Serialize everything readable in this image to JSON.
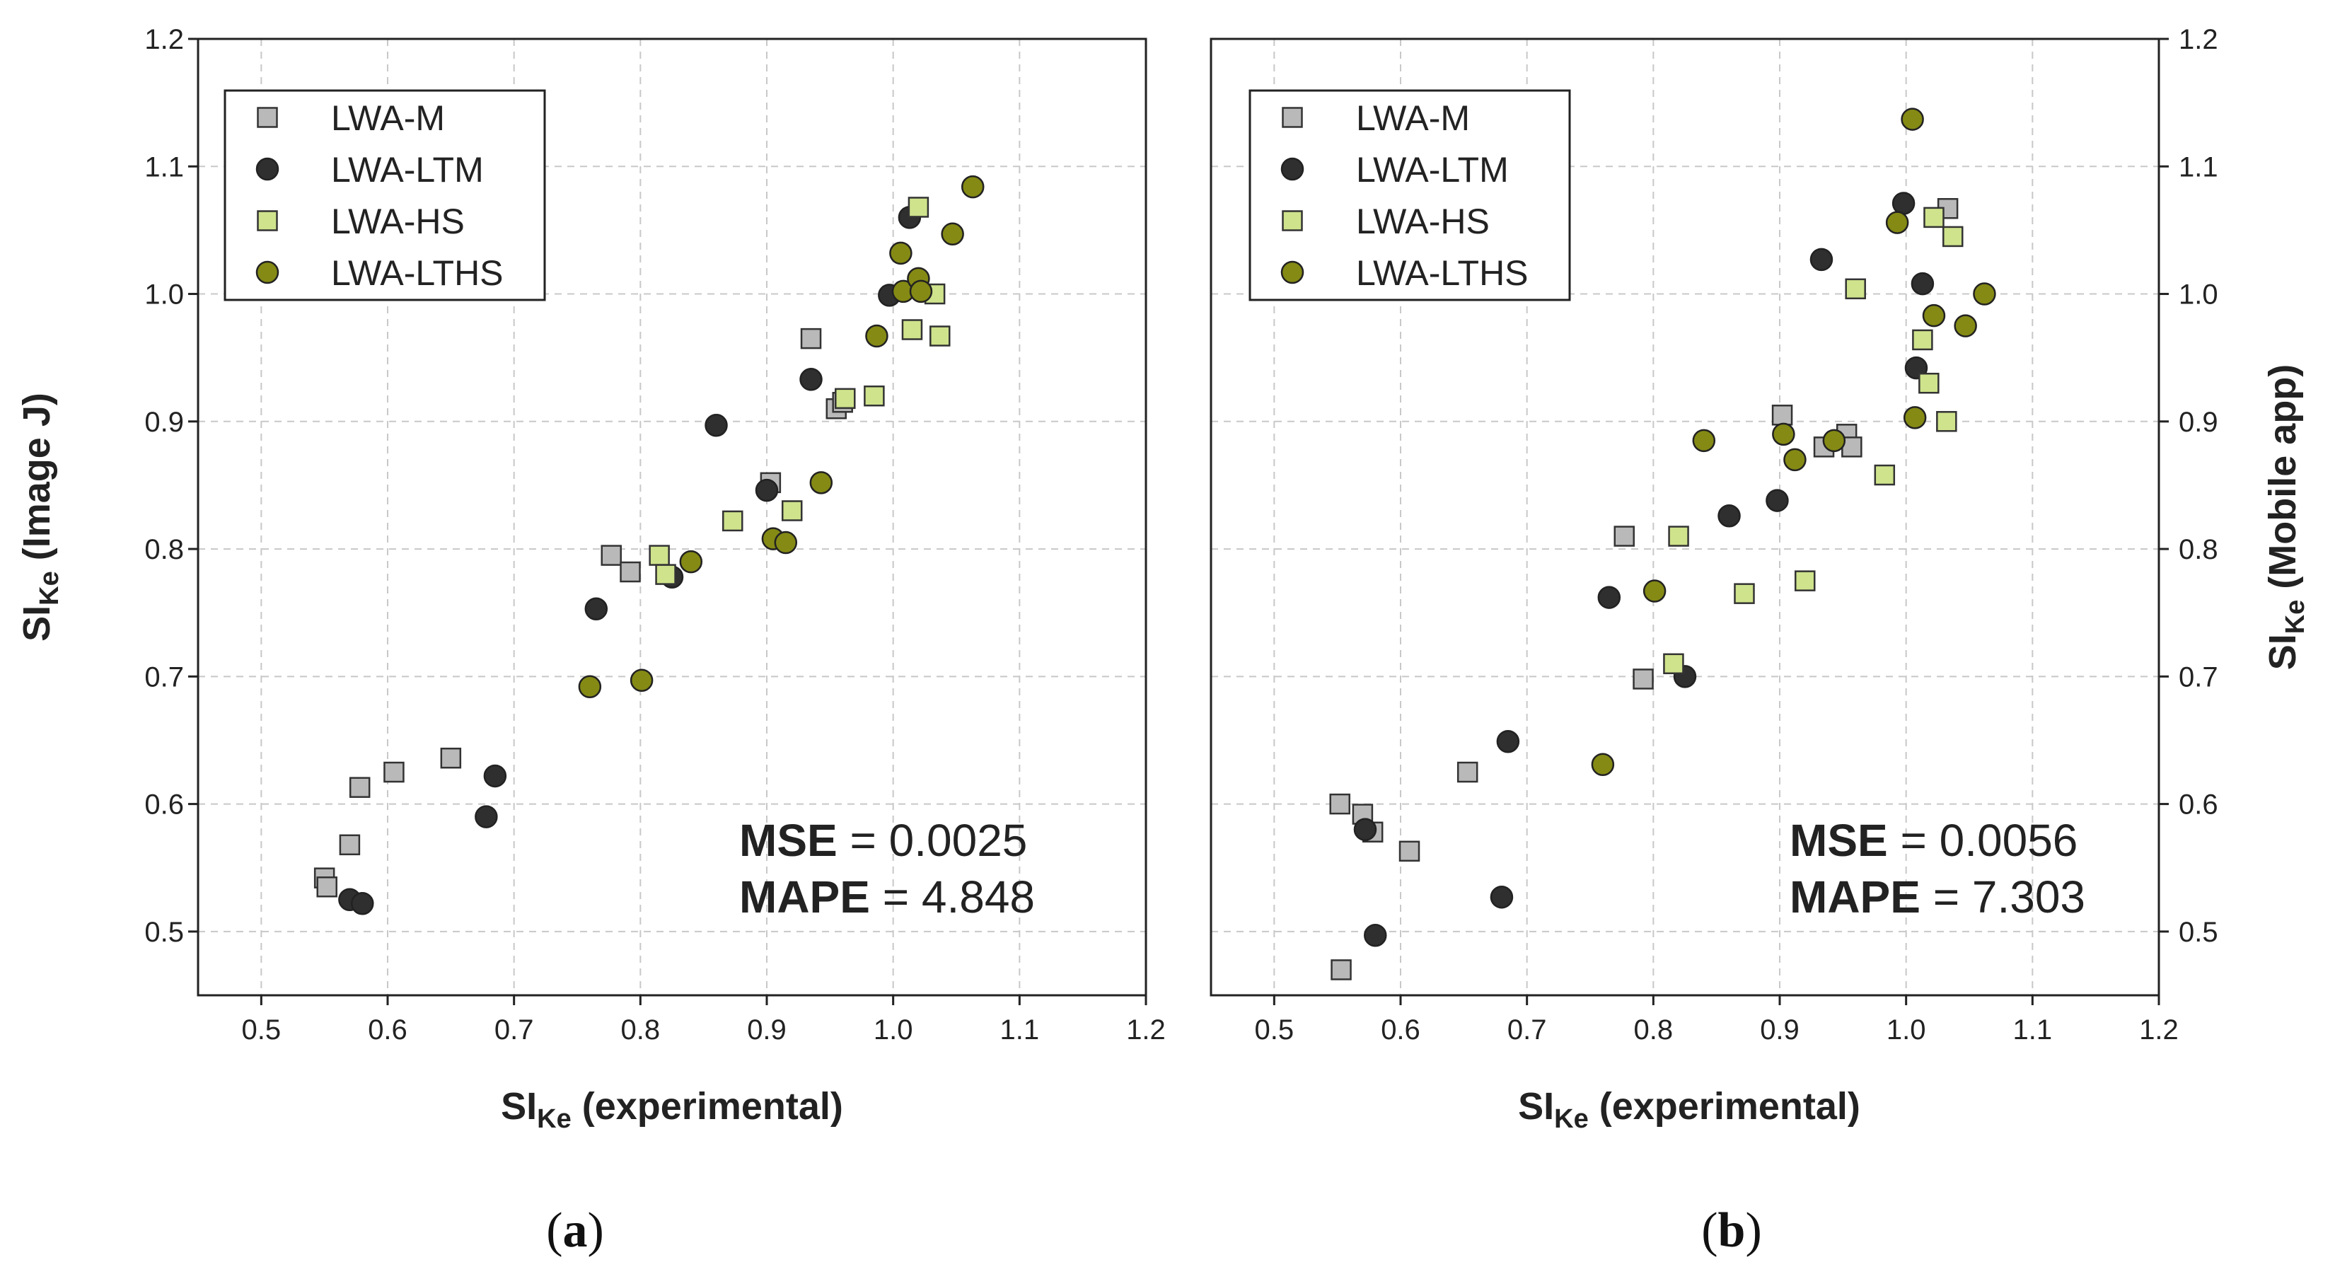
{
  "colors": {
    "LWA-M": "#b9b9b9",
    "LWA-LTM": "#2f2f2f",
    "LWA-HS": "#cfe38c",
    "LWA-LTHS": "#858a14",
    "grid": "#c8c8c8"
  },
  "chart_data": [
    {
      "type": "scatter",
      "panel": "a",
      "panel_label": {
        "open": "(",
        "letter": "a",
        "close": ")"
      },
      "xlabel": {
        "main": "SI",
        "sub": "Ke",
        "rest": " (experimental)"
      },
      "ylabel": {
        "main": "SI",
        "sub": "Ke",
        "rest": " (Image J)"
      },
      "xlim": [
        0.45,
        1.2
      ],
      "ylim": [
        0.45,
        1.2
      ],
      "xticks": [
        "0.5",
        "0.6",
        "0.7",
        "0.8",
        "0.9",
        "1.0",
        "1.1",
        "1.2"
      ],
      "yticks": [
        "0.5",
        "0.6",
        "0.7",
        "0.8",
        "0.9",
        "1.0",
        "1.1",
        "1.2"
      ],
      "y_axis_side": "left",
      "legend": {
        "position": "top-left",
        "entries": [
          "LWA-M",
          "LWA-LTM",
          "LWA-HS",
          "LWA-LTHS"
        ]
      },
      "annotations": [
        {
          "label": "MSE",
          "value": " = 0.0025"
        },
        {
          "label": "MAPE",
          "value": " = 4.848"
        }
      ],
      "series": [
        {
          "name": "LWA-M",
          "marker": "square",
          "points": [
            [
              0.55,
              0.542
            ],
            [
              0.552,
              0.535
            ],
            [
              0.57,
              0.568
            ],
            [
              0.578,
              0.613
            ],
            [
              0.605,
              0.625
            ],
            [
              0.65,
              0.636
            ],
            [
              0.777,
              0.795
            ],
            [
              0.792,
              0.782
            ],
            [
              0.903,
              0.852
            ],
            [
              0.935,
              0.965
            ],
            [
              0.955,
              0.91
            ],
            [
              0.96,
              0.915
            ],
            [
              1.02,
              1.005
            ]
          ]
        },
        {
          "name": "LWA-LTM",
          "marker": "circle",
          "points": [
            [
              0.57,
              0.525
            ],
            [
              0.58,
              0.522
            ],
            [
              0.678,
              0.59
            ],
            [
              0.685,
              0.622
            ],
            [
              0.765,
              0.753
            ],
            [
              0.825,
              0.778
            ],
            [
              0.86,
              0.897
            ],
            [
              0.9,
              0.846
            ],
            [
              0.935,
              0.933
            ],
            [
              0.997,
              0.999
            ],
            [
              1.013,
              1.06
            ]
          ]
        },
        {
          "name": "LWA-HS",
          "marker": "square",
          "points": [
            [
              0.815,
              0.795
            ],
            [
              0.82,
              0.78
            ],
            [
              0.873,
              0.822
            ],
            [
              0.92,
              0.83
            ],
            [
              0.962,
              0.918
            ],
            [
              0.985,
              0.92
            ],
            [
              1.015,
              0.972
            ],
            [
              1.02,
              1.068
            ],
            [
              1.033,
              1.0
            ],
            [
              1.037,
              0.967
            ]
          ]
        },
        {
          "name": "LWA-LTHS",
          "marker": "circle",
          "points": [
            [
              0.76,
              0.692
            ],
            [
              0.801,
              0.697
            ],
            [
              0.84,
              0.79
            ],
            [
              0.905,
              0.808
            ],
            [
              0.915,
              0.805
            ],
            [
              0.943,
              0.852
            ],
            [
              0.987,
              0.967
            ],
            [
              1.006,
              1.032
            ],
            [
              1.008,
              1.002
            ],
            [
              1.02,
              1.012
            ],
            [
              1.022,
              1.002
            ],
            [
              1.047,
              1.047
            ],
            [
              1.063,
              1.084
            ]
          ]
        }
      ]
    },
    {
      "type": "scatter",
      "panel": "b",
      "panel_label": {
        "open": "(",
        "letter": "b",
        "close": ")"
      },
      "xlabel": {
        "main": "SI",
        "sub": "Ke",
        "rest": " (experimental)"
      },
      "ylabel": {
        "main": "SI",
        "sub": "Ke",
        "rest": " (Mobile app)"
      },
      "xlim": [
        0.45,
        1.2
      ],
      "ylim": [
        0.45,
        1.2
      ],
      "xticks": [
        "0.5",
        "0.6",
        "0.7",
        "0.8",
        "0.9",
        "1.0",
        "1.1",
        "1.2"
      ],
      "yticks": [
        "0.5",
        "0.6",
        "0.7",
        "0.8",
        "0.9",
        "1.0",
        "1.1",
        "1.2"
      ],
      "y_axis_side": "right",
      "legend": {
        "position": "top-left",
        "entries": [
          "LWA-M",
          "LWA-LTM",
          "LWA-HS",
          "LWA-LTHS"
        ]
      },
      "annotations": [
        {
          "label": "MSE",
          "value": " = 0.0056"
        },
        {
          "label": "MAPE",
          "value": " = 7.303"
        }
      ],
      "series": [
        {
          "name": "LWA-M",
          "marker": "square",
          "points": [
            [
              0.552,
              0.6
            ],
            [
              0.553,
              0.47
            ],
            [
              0.57,
              0.592
            ],
            [
              0.578,
              0.578
            ],
            [
              0.607,
              0.563
            ],
            [
              0.653,
              0.625
            ],
            [
              0.777,
              0.81
            ],
            [
              0.792,
              0.698
            ],
            [
              0.902,
              0.905
            ],
            [
              0.935,
              0.88
            ],
            [
              0.953,
              0.89
            ],
            [
              0.957,
              0.88
            ],
            [
              1.033,
              1.067
            ]
          ]
        },
        {
          "name": "LWA-LTM",
          "marker": "circle",
          "points": [
            [
              0.572,
              0.58
            ],
            [
              0.58,
              0.497
            ],
            [
              0.68,
              0.527
            ],
            [
              0.685,
              0.649
            ],
            [
              0.765,
              0.762
            ],
            [
              0.825,
              0.7
            ],
            [
              0.86,
              0.826
            ],
            [
              0.898,
              0.838
            ],
            [
              0.933,
              1.027
            ],
            [
              0.998,
              1.071
            ],
            [
              1.008,
              0.942
            ],
            [
              1.013,
              1.008
            ]
          ]
        },
        {
          "name": "LWA-HS",
          "marker": "square",
          "points": [
            [
              0.816,
              0.71
            ],
            [
              0.82,
              0.81
            ],
            [
              0.872,
              0.765
            ],
            [
              0.92,
              0.775
            ],
            [
              0.96,
              1.004
            ],
            [
              0.983,
              0.858
            ],
            [
              1.013,
              0.964
            ],
            [
              1.018,
              0.93
            ],
            [
              1.022,
              1.06
            ],
            [
              1.032,
              0.9
            ],
            [
              1.037,
              1.045
            ]
          ]
        },
        {
          "name": "LWA-LTHS",
          "marker": "circle",
          "points": [
            [
              0.76,
              0.631
            ],
            [
              0.801,
              0.767
            ],
            [
              0.84,
              0.885
            ],
            [
              0.903,
              0.89
            ],
            [
              0.912,
              0.87
            ],
            [
              0.943,
              0.885
            ],
            [
              0.993,
              1.056
            ],
            [
              1.005,
              1.137
            ],
            [
              1.007,
              0.903
            ],
            [
              1.022,
              0.983
            ],
            [
              1.047,
              0.975
            ],
            [
              1.062,
              1.0
            ]
          ]
        }
      ]
    }
  ]
}
